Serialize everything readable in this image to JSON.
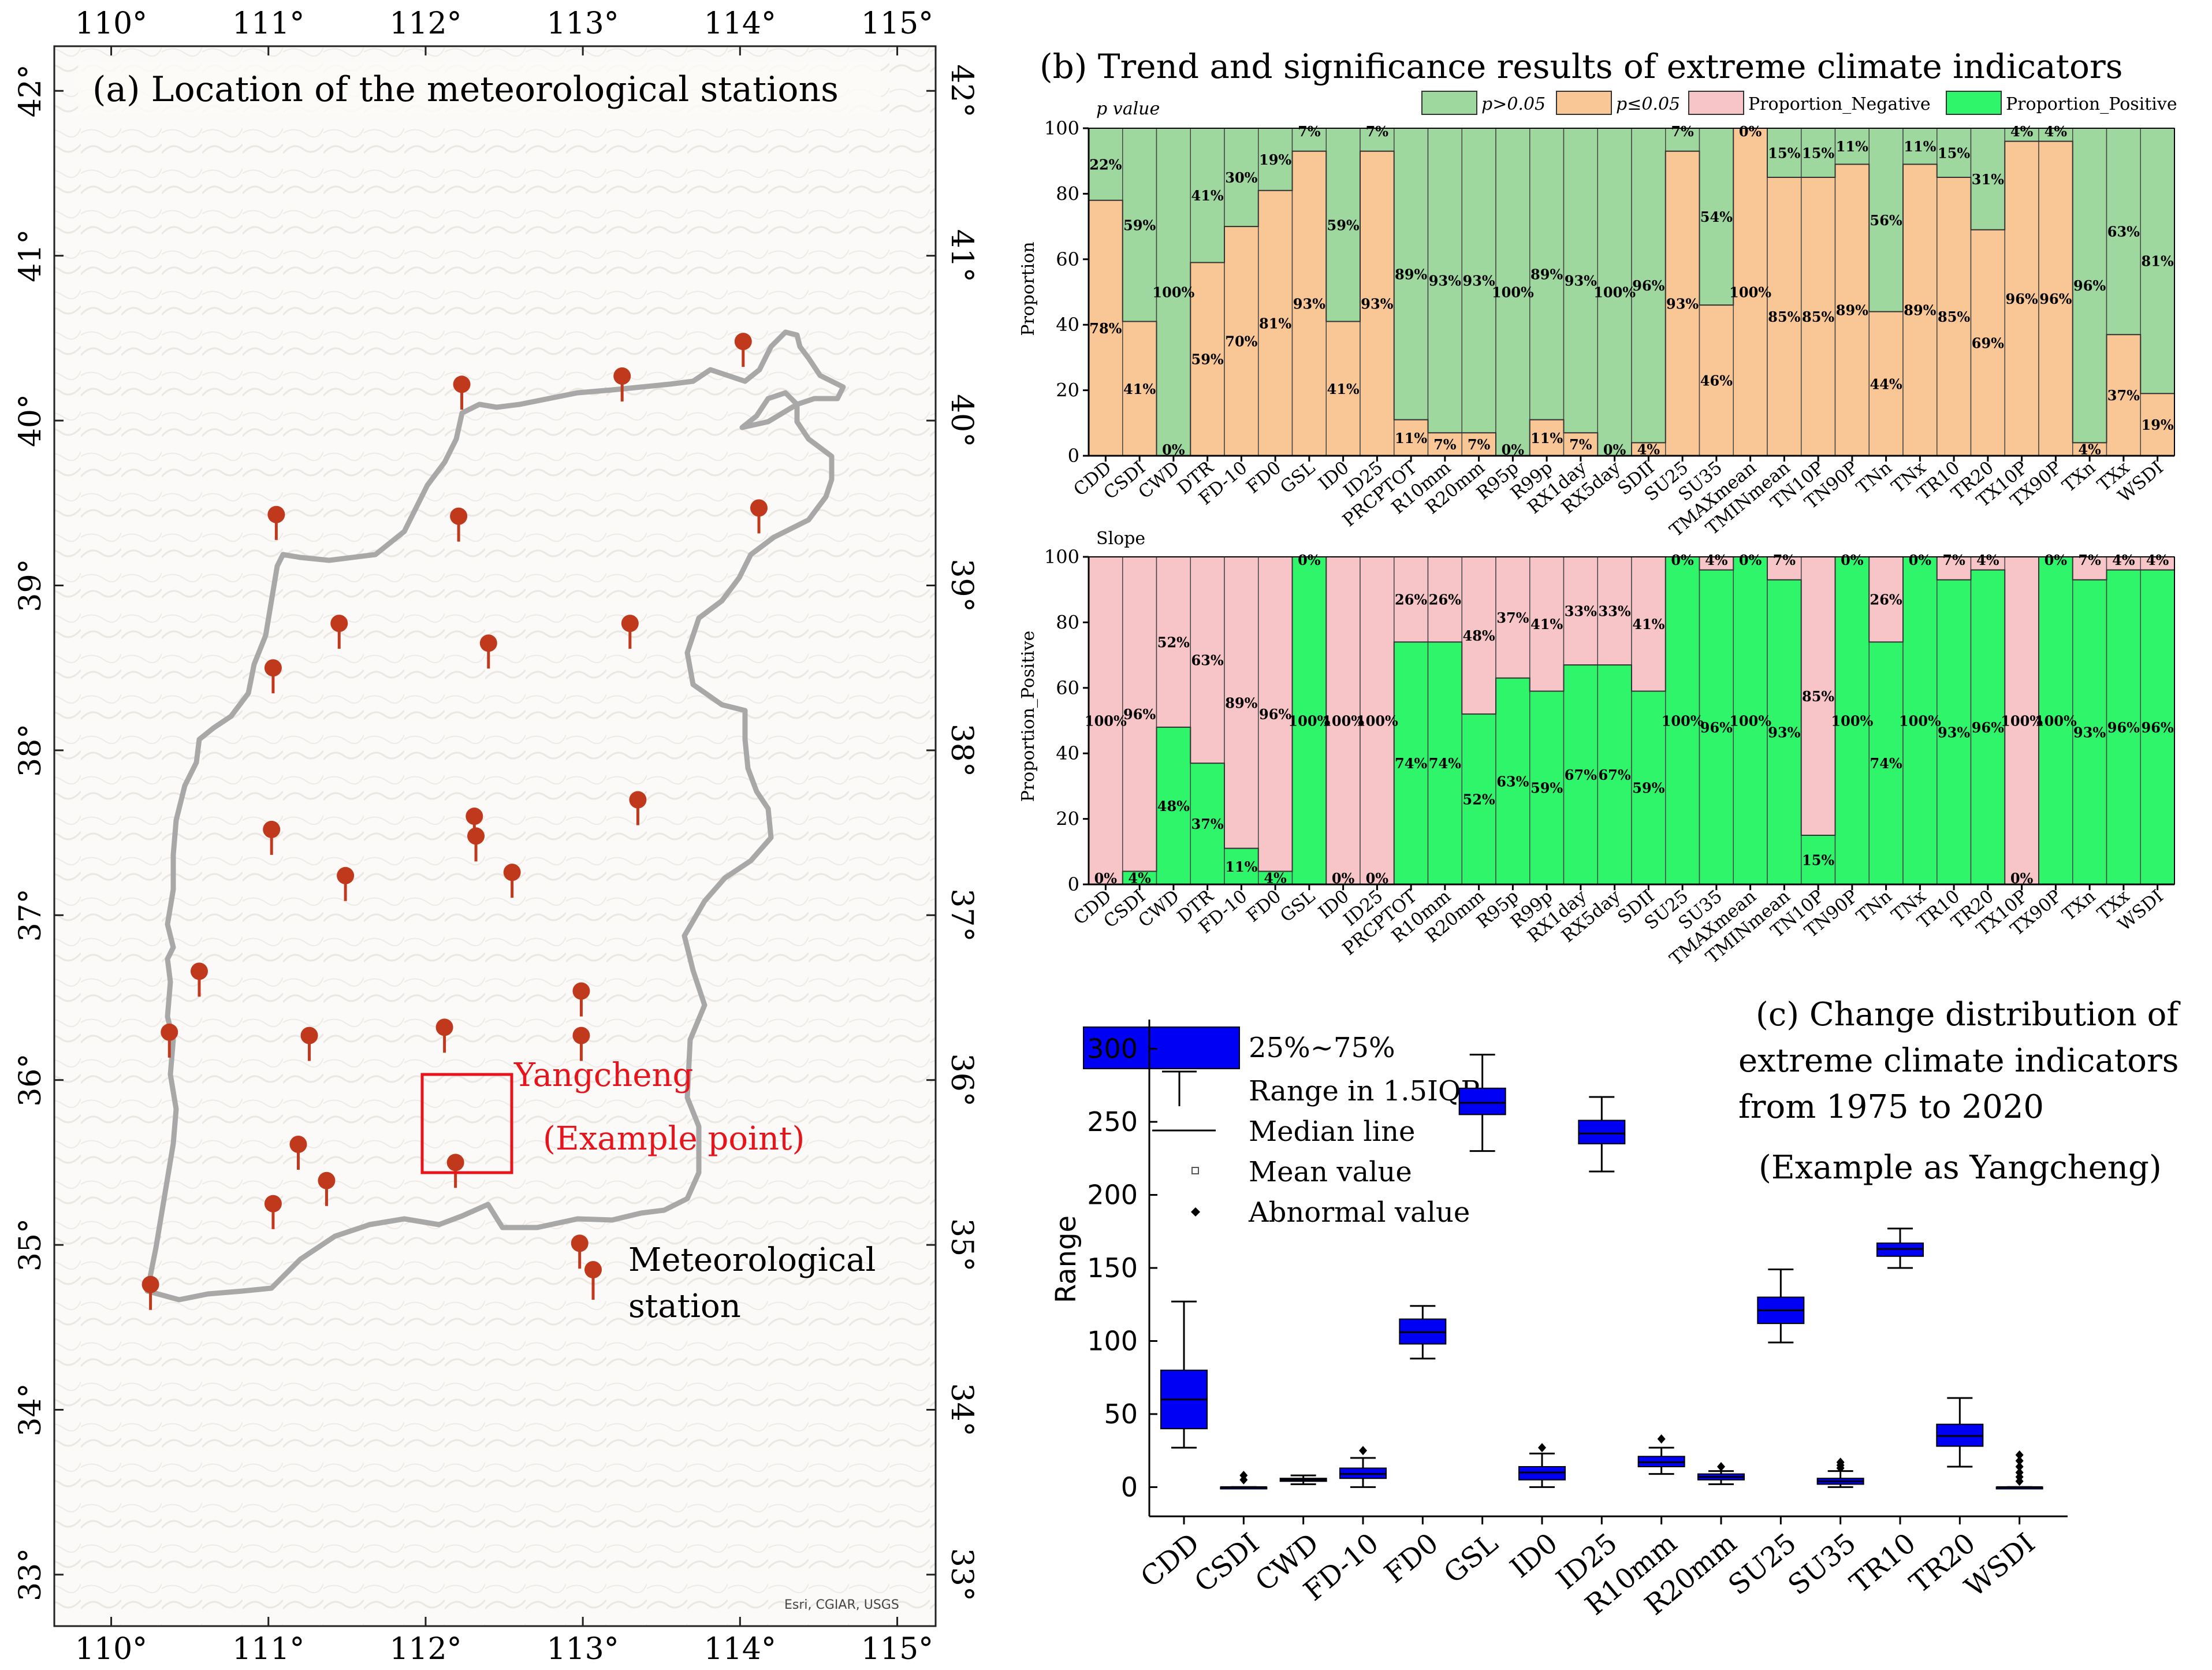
{
  "figure": {
    "panel_a": {
      "title": "(a)  Location of the meteorological stations",
      "lon_ticks": [
        "110°",
        "111°",
        "112°",
        "113°",
        "114°",
        "115°"
      ],
      "lat_ticks": [
        "42°",
        "41°",
        "40°",
        "39°",
        "38°",
        "37°",
        "36°",
        "35°",
        "34°",
        "33°"
      ],
      "example_label_1": "Yangcheng",
      "example_label_2": "(Example point)",
      "legend_label_1": "Meteorological",
      "legend_label_2": "station",
      "credit": "Esri, CGIAR, USGS",
      "colors": {
        "station": "#c1391c",
        "boundary": "#a8a8a8",
        "example_box": "#e8141b"
      },
      "stations": [
        {
          "lon": 114.02,
          "lat": 40.48
        },
        {
          "lon": 113.25,
          "lat": 40.27
        },
        {
          "lon": 112.23,
          "lat": 40.22
        },
        {
          "lon": 111.05,
          "lat": 39.43
        },
        {
          "lon": 112.21,
          "lat": 39.42
        },
        {
          "lon": 114.12,
          "lat": 39.47
        },
        {
          "lon": 111.45,
          "lat": 38.77
        },
        {
          "lon": 112.4,
          "lat": 38.65
        },
        {
          "lon": 113.3,
          "lat": 38.77
        },
        {
          "lon": 111.03,
          "lat": 38.5
        },
        {
          "lon": 111.02,
          "lat": 37.52
        },
        {
          "lon": 112.31,
          "lat": 37.6
        },
        {
          "lon": 113.35,
          "lat": 37.7
        },
        {
          "lon": 112.32,
          "lat": 37.48
        },
        {
          "lon": 111.49,
          "lat": 37.24
        },
        {
          "lon": 112.55,
          "lat": 37.26
        },
        {
          "lon": 110.56,
          "lat": 36.66
        },
        {
          "lon": 112.99,
          "lat": 36.54
        },
        {
          "lon": 110.37,
          "lat": 36.29
        },
        {
          "lon": 111.26,
          "lat": 36.27
        },
        {
          "lon": 112.12,
          "lat": 36.32
        },
        {
          "lon": 112.99,
          "lat": 36.27
        },
        {
          "lon": 111.19,
          "lat": 35.61
        },
        {
          "lon": 112.19,
          "lat": 35.5
        },
        {
          "lon": 111.37,
          "lat": 35.39
        },
        {
          "lon": 111.03,
          "lat": 35.25
        },
        {
          "lon": 112.98,
          "lat": 35.01
        },
        {
          "lon": 110.25,
          "lat": 34.76
        }
      ]
    },
    "panel_b": {
      "title": "(b)  Trend and  significance results of extreme climate indicators",
      "legend": [
        "p>0.05",
        "p≤0.05",
        "Proportion_Negative",
        "Proportion_Positive"
      ],
      "top_label": "p value",
      "bottom_label": "Slope",
      "top_ylabel": "Proportion",
      "bottom_ylabel": "Proportion_Positive",
      "colors": {
        "p_gt": "#9fd89f",
        "p_le": "#f9c795",
        "neg": "#f7c4c8",
        "pos": "#2ef56a"
      },
      "yticks": [
        "0",
        "20",
        "40",
        "60",
        "80",
        "100"
      ]
    },
    "panel_c": {
      "title_1": "(c)  Change distribution of",
      "title_2": "extreme climate indicators",
      "title_3": "from 1975 to 2020",
      "title_4": "(Example as Yangcheng)",
      "ylabel": "Range",
      "yticks": [
        "0",
        "50",
        "100",
        "150",
        "200",
        "250",
        "300"
      ],
      "legend": [
        "25%~75%",
        "Range in 1.5IQR",
        "Median line",
        "Mean value",
        "Abnormal value"
      ],
      "box_color": "#0000f5"
    }
  },
  "chart_data": [
    {
      "type": "bar",
      "title": "(b) Trend and significance results of extreme climate indicators — p value",
      "stacked": true,
      "ylabel": "Proportion",
      "ylim": [
        0,
        100
      ],
      "categories": [
        "CDD",
        "CSDI",
        "CWD",
        "DTR",
        "FD-10",
        "FD0",
        "GSL",
        "ID0",
        "ID25",
        "PRCPTOT",
        "R10mm",
        "R20mm",
        "R95p",
        "R99p",
        "RX1day",
        "RX5day",
        "SDII",
        "SU25",
        "SU35",
        "TMAXmean",
        "TMINmean",
        "TN10P",
        "TN90P",
        "TNn",
        "TNx",
        "TR10",
        "TR20",
        "TX10P",
        "TX90P",
        "TXn",
        "TXx",
        "WSDI"
      ],
      "series": [
        {
          "name": "p≤0.05",
          "values": [
            78,
            41,
            0,
            59,
            70,
            81,
            93,
            41,
            93,
            11,
            7,
            7,
            0,
            11,
            7,
            0,
            4,
            93,
            46,
            100,
            85,
            85,
            89,
            44,
            89,
            85,
            69,
            96,
            96,
            4,
            37,
            19
          ]
        },
        {
          "name": "p>0.05",
          "values": [
            22,
            59,
            100,
            41,
            30,
            19,
            7,
            59,
            7,
            89,
            93,
            93,
            100,
            89,
            93,
            100,
            96,
            7,
            54,
            0,
            15,
            15,
            11,
            56,
            11,
            15,
            31,
            4,
            4,
            96,
            63,
            81
          ]
        }
      ]
    },
    {
      "type": "bar",
      "title": "(b) Trend and significance results of extreme climate indicators — Slope",
      "stacked": true,
      "ylabel": "Proportion_Positive",
      "ylim": [
        0,
        100
      ],
      "categories": [
        "CDD",
        "CSDI",
        "CWD",
        "DTR",
        "FD-10",
        "FD0",
        "GSL",
        "ID0",
        "ID25",
        "PRCPTOT",
        "R10mm",
        "R20mm",
        "R95p",
        "R99p",
        "RX1day",
        "RX5day",
        "SDII",
        "SU25",
        "SU35",
        "TMAXmean",
        "TMINmean",
        "TN10P",
        "TN90P",
        "TNn",
        "TNx",
        "TR10",
        "TR20",
        "TX10P",
        "TX90P",
        "TXn",
        "TXx",
        "WSDI"
      ],
      "series": [
        {
          "name": "Proportion_Positive",
          "values": [
            0,
            4,
            48,
            37,
            11,
            4,
            100,
            0,
            0,
            74,
            74,
            52,
            63,
            59,
            67,
            67,
            59,
            100,
            96,
            100,
            93,
            15,
            100,
            74,
            100,
            93,
            96,
            0,
            100,
            93,
            96,
            96
          ]
        },
        {
          "name": "Proportion_Negative",
          "values": [
            100,
            96,
            52,
            63,
            89,
            96,
            0,
            100,
            100,
            26,
            26,
            48,
            37,
            41,
            33,
            33,
            41,
            0,
            4,
            0,
            7,
            85,
            0,
            26,
            0,
            7,
            4,
            100,
            0,
            7,
            4,
            4
          ]
        }
      ]
    },
    {
      "type": "box",
      "title": "(c) Change distribution of extreme climate indicators from 1975 to 2020 (Example as Yangcheng)",
      "ylabel": "Range",
      "ylim": [
        -20,
        320
      ],
      "categories": [
        "CDD",
        "CSDI",
        "CWD",
        "FD-10",
        "FD0",
        "GSL",
        "ID0",
        "ID25",
        "R10mm",
        "R20mm",
        "SU25",
        "SU35",
        "TR10",
        "TR20",
        "WSDI"
      ],
      "boxes": [
        {
          "min": 27,
          "q1": 40,
          "median": 60,
          "q3": 80,
          "max": 127,
          "outliers": []
        },
        {
          "min": 0,
          "q1": 0,
          "median": 0,
          "q3": 0,
          "max": 0,
          "outliers": [
            5,
            8
          ]
        },
        {
          "min": 2,
          "q1": 4,
          "median": 5,
          "q3": 6,
          "max": 8,
          "outliers": []
        },
        {
          "min": 0,
          "q1": 6,
          "median": 9,
          "q3": 13,
          "max": 20,
          "outliers": [
            25
          ]
        },
        {
          "min": 88,
          "q1": 98,
          "median": 106,
          "q3": 115,
          "max": 124,
          "outliers": []
        },
        {
          "min": 230,
          "q1": 255,
          "median": 263,
          "q3": 273,
          "max": 296,
          "outliers": []
        },
        {
          "min": 0,
          "q1": 5,
          "median": 10,
          "q3": 14,
          "max": 23,
          "outliers": [
            27
          ]
        },
        {
          "min": 216,
          "q1": 235,
          "median": 242,
          "q3": 251,
          "max": 267,
          "outliers": []
        },
        {
          "min": 9,
          "q1": 14,
          "median": 17,
          "q3": 21,
          "max": 27,
          "outliers": [
            33
          ]
        },
        {
          "min": 2,
          "q1": 5,
          "median": 7,
          "q3": 9,
          "max": 11,
          "outliers": [
            14
          ]
        },
        {
          "min": 99,
          "q1": 112,
          "median": 121,
          "q3": 130,
          "max": 149,
          "outliers": []
        },
        {
          "min": 0,
          "q1": 2,
          "median": 4,
          "q3": 6,
          "max": 11,
          "outliers": [
            13,
            15,
            17
          ]
        },
        {
          "min": 150,
          "q1": 158,
          "median": 163,
          "q3": 167,
          "max": 177,
          "outliers": []
        },
        {
          "min": 14,
          "q1": 28,
          "median": 35,
          "q3": 43,
          "max": 61,
          "outliers": []
        },
        {
          "min": 0,
          "q1": 0,
          "median": 0,
          "q3": 0,
          "max": 0,
          "outliers": [
            4,
            7,
            10,
            14,
            18,
            22
          ]
        }
      ]
    }
  ]
}
